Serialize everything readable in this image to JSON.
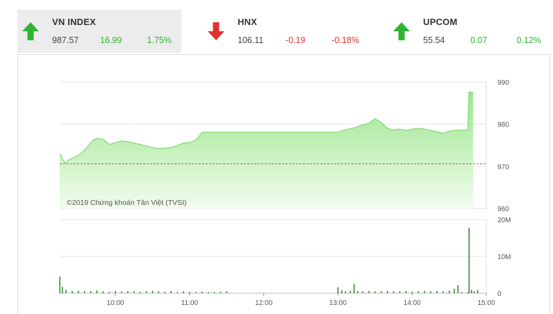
{
  "indices": [
    {
      "name": "VN INDEX",
      "value": "987.57",
      "change": "16.99",
      "percent": "1.75%",
      "direction": "up",
      "active": true
    },
    {
      "name": "HNX",
      "value": "106.11",
      "change": "-0.19",
      "percent": "-0.18%",
      "direction": "down",
      "active": false
    },
    {
      "name": "UPCOM",
      "value": "55.54",
      "change": "0.07",
      "percent": "0.12%",
      "direction": "up",
      "active": false
    }
  ],
  "colors": {
    "up": "#2fb52f",
    "down": "#e03030",
    "area_top": "#9be68c",
    "area_bottom": "#f2fcef",
    "line": "#7fd86f",
    "reference": "#c0392b",
    "volume": "#1f7a1f"
  },
  "watermark": "©2019 Chứng khoán Tân Việt (TVSI)",
  "chart_data": [
    {
      "type": "area",
      "series": [
        {
          "values": [
            [
              "09:15",
              973.0
            ],
            [
              "09:18",
              971.3
            ],
            [
              "09:20",
              970.8
            ],
            [
              "09:22",
              971.5
            ],
            [
              "09:26",
              972.0
            ],
            [
              "09:30",
              972.6
            ],
            [
              "09:34",
              973.5
            ],
            [
              "09:38",
              974.8
            ],
            [
              "09:42",
              976.2
            ],
            [
              "09:45",
              976.6
            ],
            [
              "09:50",
              976.4
            ],
            [
              "09:55",
              975.2
            ],
            [
              "10:00",
              975.6
            ],
            [
              "10:05",
              976.0
            ],
            [
              "10:10",
              975.8
            ],
            [
              "10:15",
              975.5
            ],
            [
              "10:20",
              975.2
            ],
            [
              "10:25",
              974.8
            ],
            [
              "10:30",
              974.4
            ],
            [
              "10:35",
              974.2
            ],
            [
              "10:45",
              974.4
            ],
            [
              "10:55",
              975.5
            ],
            [
              "11:00",
              975.6
            ],
            [
              "11:05",
              976.2
            ],
            [
              "11:10",
              978.0
            ],
            [
              "11:15",
              978.1
            ],
            [
              "11:30",
              978.1
            ],
            [
              "13:00",
              978.1
            ],
            [
              "13:05",
              978.6
            ],
            [
              "13:10",
              978.9
            ],
            [
              "13:15",
              979.3
            ],
            [
              "13:20",
              979.8
            ],
            [
              "13:25",
              980.2
            ],
            [
              "13:30",
              981.3
            ],
            [
              "13:35",
              980.4
            ],
            [
              "13:40",
              979.0
            ],
            [
              "13:45",
              978.6
            ],
            [
              "13:50",
              978.8
            ],
            [
              "13:55",
              978.5
            ],
            [
              "14:00",
              978.8
            ],
            [
              "14:05",
              979.0
            ],
            [
              "14:10",
              978.8
            ],
            [
              "14:15",
              978.5
            ],
            [
              "14:20",
              978.2
            ],
            [
              "14:25",
              977.8
            ],
            [
              "14:30",
              978.3
            ],
            [
              "14:35",
              978.6
            ],
            [
              "14:40",
              978.6
            ],
            [
              "14:45",
              978.6
            ],
            [
              "14:46",
              987.57
            ],
            [
              "14:47",
              987.57
            ]
          ]
        }
      ],
      "reference": 970.58,
      "y_ticks": [
        990,
        980,
        970,
        960
      ],
      "ylim": [
        960,
        990
      ],
      "xlim": [
        "09:15",
        "15:00"
      ]
    },
    {
      "type": "bar",
      "series": [
        {
          "values": [
            [
              "09:15",
              4.5
            ],
            [
              "09:17",
              1.7
            ],
            [
              "09:20",
              0.9
            ],
            [
              "09:25",
              0.6
            ],
            [
              "09:30",
              0.7
            ],
            [
              "09:35",
              0.5
            ],
            [
              "09:40",
              0.6
            ],
            [
              "09:45",
              0.8
            ],
            [
              "09:50",
              0.5
            ],
            [
              "09:55",
              0.4
            ],
            [
              "10:00",
              0.6
            ],
            [
              "10:05",
              0.5
            ],
            [
              "10:10",
              0.6
            ],
            [
              "10:15",
              0.5
            ],
            [
              "10:20",
              0.4
            ],
            [
              "10:25",
              0.5
            ],
            [
              "10:30",
              0.6
            ],
            [
              "10:35",
              0.5
            ],
            [
              "10:40",
              0.4
            ],
            [
              "10:45",
              0.6
            ],
            [
              "10:50",
              0.3
            ],
            [
              "10:55",
              0.5
            ],
            [
              "11:00",
              0.4
            ],
            [
              "11:05",
              0.3
            ],
            [
              "11:10",
              0.4
            ],
            [
              "11:15",
              0.3
            ],
            [
              "11:20",
              0.3
            ],
            [
              "11:25",
              0.4
            ],
            [
              "11:30",
              0.5
            ],
            [
              "13:00",
              1.6
            ],
            [
              "13:03",
              0.8
            ],
            [
              "13:06",
              0.5
            ],
            [
              "13:10",
              0.7
            ],
            [
              "13:13",
              2.5
            ],
            [
              "13:16",
              0.6
            ],
            [
              "13:20",
              0.5
            ],
            [
              "13:25",
              0.6
            ],
            [
              "13:30",
              0.5
            ],
            [
              "13:35",
              0.5
            ],
            [
              "13:40",
              0.6
            ],
            [
              "13:45",
              0.5
            ],
            [
              "13:50",
              0.5
            ],
            [
              "13:55",
              0.6
            ],
            [
              "14:00",
              0.4
            ],
            [
              "14:05",
              0.5
            ],
            [
              "14:10",
              0.6
            ],
            [
              "14:15",
              0.5
            ],
            [
              "14:20",
              0.6
            ],
            [
              "14:25",
              0.5
            ],
            [
              "14:30",
              0.7
            ],
            [
              "14:34",
              1.2
            ],
            [
              "14:37",
              2.2
            ],
            [
              "14:40",
              0.3
            ],
            [
              "14:45",
              0.3
            ],
            [
              "14:46",
              17.8
            ],
            [
              "14:48",
              0.9
            ],
            [
              "14:50",
              0.5
            ],
            [
              "14:53",
              0.9
            ]
          ]
        }
      ],
      "y_ticks": [
        "20M",
        "10M",
        "0"
      ],
      "ylim": [
        0,
        20
      ],
      "x_ticks": [
        "10:00",
        "11:00",
        "12:00",
        "13:00",
        "14:00",
        "15:00"
      ],
      "xlim": [
        "09:15",
        "15:00"
      ]
    }
  ]
}
